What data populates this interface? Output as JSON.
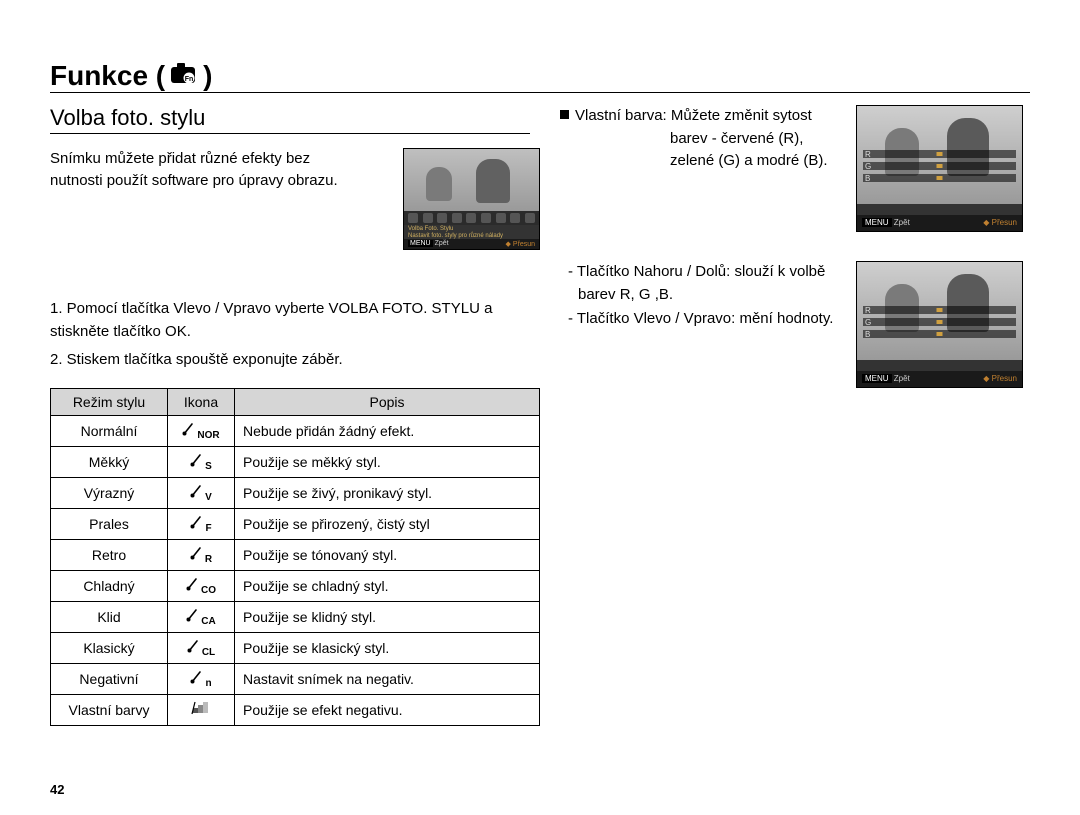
{
  "page_number": "42",
  "title": "Funkce (",
  "title_suffix": ")",
  "title_icon_label": "camera-fn-icon",
  "subtitle": "Volba foto. stylu",
  "intro": "Snímku můžete přidat různé efekty bez nutnosti použít software pro úpravy obrazu.",
  "thumb1": {
    "line1": "Volba Foto. Stylu",
    "line2": "Nastavit foto. styly pro různé nálady",
    "back": "Zpět",
    "move": "Přesun",
    "menu": "MENU"
  },
  "steps": {
    "s1": "1. Pomocí tlačítka Vlevo / Vpravo vyberte VOLBA FOTO. STYLU a stiskněte tlačítko OK.",
    "s2": "2. Stiskem tlačítka spouště exponujte záběr."
  },
  "table": {
    "headers": {
      "mode": "Režim stylu",
      "icon": "Ikona",
      "desc": "Popis"
    },
    "rows": [
      {
        "mode": "Normální",
        "icon_sub": "NOR",
        "desc": "Nebude přidán žádný efekt."
      },
      {
        "mode": "Měkký",
        "icon_sub": "S",
        "desc": "Použije se měkký styl."
      },
      {
        "mode": "Výrazný",
        "icon_sub": "V",
        "desc": "Použije se živý, pronikavý styl."
      },
      {
        "mode": "Prales",
        "icon_sub": "F",
        "desc": "Použije se přirozený, čistý styl"
      },
      {
        "mode": "Retro",
        "icon_sub": "R",
        "desc": "Použije se tónovaný styl."
      },
      {
        "mode": "Chladný",
        "icon_sub": "CO",
        "desc": "Použije se chladný styl."
      },
      {
        "mode": "Klid",
        "icon_sub": "CA",
        "desc": "Použije se klidný styl."
      },
      {
        "mode": "Klasický",
        "icon_sub": "CL",
        "desc": "Použije se klasický styl."
      },
      {
        "mode": "Negativní",
        "icon_sub": "n",
        "desc": "Nastavit snímek na negativ."
      },
      {
        "mode": "Vlastní barvy",
        "icon_sub": "",
        "desc": "Použije se efekt negativu."
      }
    ]
  },
  "right": {
    "custom_label": "Vlastní barva:",
    "custom_desc1": "Můžete změnit sytost",
    "custom_desc2": "barev - červené (R),",
    "custom_desc3": "zelené (G) a modré (B).",
    "note1": "- Tlačítko Nahoru / Dolů: slouží k volbě barev R, G ,B.",
    "note2": "- Tlačítko Vlevo / Vpravo: mění hodnoty.",
    "sliders": {
      "r": "R",
      "g": "G",
      "b": "B"
    },
    "back": "Zpět",
    "move": "Přesun",
    "menu": "MENU"
  },
  "colors": {
    "bg": "#ffffff",
    "text": "#000000",
    "table_header_bg": "#d6d6d6",
    "thumb_bg": "#333333",
    "thumb_accent": "#d0b060"
  }
}
